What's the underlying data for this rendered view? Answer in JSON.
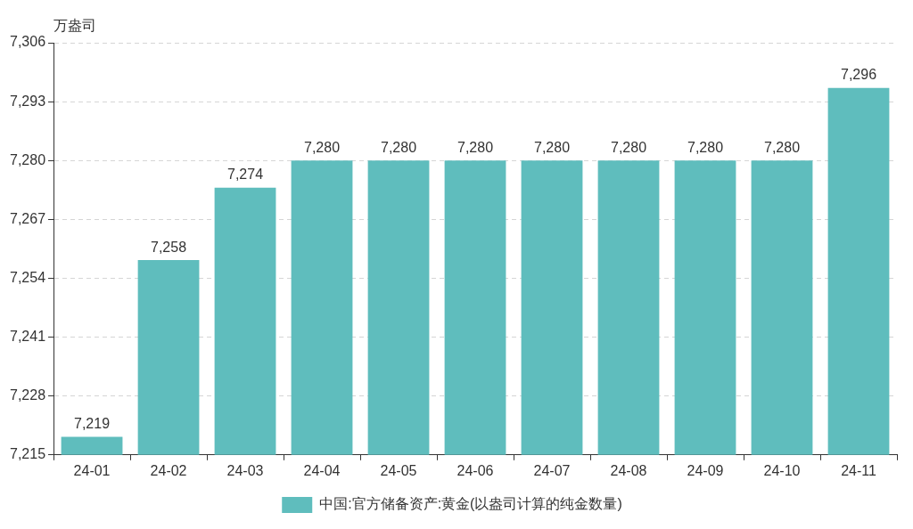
{
  "chart_data": {
    "type": "bar",
    "ylabel": "万盎司",
    "categories": [
      "24-01",
      "24-02",
      "24-03",
      "24-04",
      "24-05",
      "24-06",
      "24-07",
      "24-08",
      "24-09",
      "24-10",
      "24-11"
    ],
    "series": [
      {
        "name": "中国:官方储备资产:黄金(以盎司计算的纯金数量)",
        "color": "#5fbdbd",
        "values": [
          7219,
          7258,
          7274,
          7280,
          7280,
          7280,
          7280,
          7280,
          7280,
          7280,
          7296
        ],
        "value_labels": [
          "7,219",
          "7,258",
          "7,274",
          "7,280",
          "7,280",
          "7,280",
          "7,280",
          "7,280",
          "7,280",
          "7,280",
          "7,296"
        ]
      }
    ],
    "ylim": [
      7215,
      7306
    ],
    "yticks": [
      {
        "value": 7215,
        "label": "7,215"
      },
      {
        "value": 7228,
        "label": "7,228"
      },
      {
        "value": 7241,
        "label": "7,241"
      },
      {
        "value": 7254,
        "label": "7,254"
      },
      {
        "value": 7267,
        "label": "7,267"
      },
      {
        "value": 7280,
        "label": "7,280"
      },
      {
        "value": 7293,
        "label": "7,293"
      },
      {
        "value": 7306,
        "label": "7,306"
      }
    ],
    "grid": "y",
    "legend": "bottom"
  }
}
